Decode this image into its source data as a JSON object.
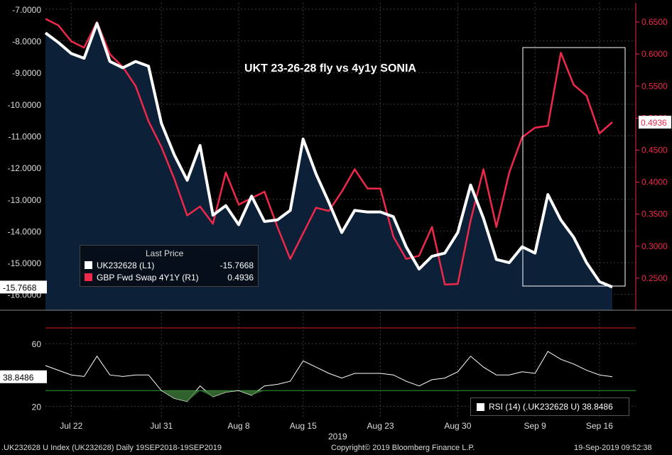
{
  "chart_data": [
    {
      "type": "line",
      "title": "UKT 23-26-28 fly vs 4y1y SONIA",
      "legend_header": "Last Price",
      "legend_placement": "bottom-left",
      "x_ticks": [
        "Jul 22",
        "Jul 31",
        "Aug 8",
        "Aug 15",
        "Aug 23",
        "Aug 30",
        "Sep 9",
        "Sep 16"
      ],
      "x_year": "2019",
      "left_axis": {
        "ticks": [
          "-7.0000",
          "-8.0000",
          "-9.0000",
          "-10.0000",
          "-11.0000",
          "-12.0000",
          "-13.0000",
          "-14.0000",
          "-15.0000",
          "-16.0000"
        ],
        "ylim": [
          -16.5,
          -6.8
        ]
      },
      "right_axis": {
        "ticks": [
          "0.6500",
          "0.6000",
          "0.5500",
          "0.5000",
          "0.4500",
          "0.4000",
          "0.3500",
          "0.3000",
          "0.2500"
        ],
        "ylim": [
          0.2,
          0.68
        ]
      },
      "series": [
        {
          "name": "UK232628  (L1)",
          "axis": "left",
          "color": "#ffffff",
          "last_label": "-15.7668",
          "values": [
            -7.75,
            -8.05,
            -8.4,
            -8.55,
            -7.45,
            -8.65,
            -8.85,
            -8.65,
            -8.8,
            -10.6,
            -11.6,
            -12.4,
            -11.3,
            -13.5,
            -13.2,
            -13.8,
            -12.9,
            -13.7,
            -13.65,
            -13.35,
            -11.1,
            -12.2,
            -13.1,
            -14.05,
            -13.35,
            -13.4,
            -13.4,
            -13.55,
            -14.5,
            -15.2,
            -14.8,
            -14.7,
            -14.05,
            -12.55,
            -13.6,
            -14.9,
            -15.0,
            -14.5,
            -14.7,
            -12.85,
            -13.65,
            -14.2,
            -15.0,
            -15.6,
            -15.77
          ],
          "dates_note": ""
        },
        {
          "name": "GBP Fwd Swap 4Y1Y  (R1)",
          "axis": "right",
          "color": "#f0284a",
          "last_label": "0.4936",
          "values": [
            0.655,
            0.645,
            0.62,
            0.61,
            0.65,
            0.6,
            0.58,
            0.55,
            0.495,
            0.455,
            0.405,
            0.348,
            0.362,
            0.335,
            0.415,
            0.365,
            0.375,
            0.385,
            0.33,
            0.28,
            0.32,
            0.36,
            0.355,
            0.385,
            0.42,
            0.39,
            0.39,
            0.315,
            0.28,
            0.285,
            0.33,
            0.24,
            0.241,
            0.34,
            0.42,
            0.33,
            0.415,
            0.47,
            0.485,
            0.488,
            0.602,
            0.552,
            0.535,
            0.476,
            0.4936
          ]
        }
      ]
    },
    {
      "type": "line",
      "title": "",
      "legend_label": "RSI (14)  (.UK232628 U)  38.8486",
      "left_axis": {
        "ticks": [
          "60",
          "20"
        ],
        "ylim": [
          12,
          80
        ]
      },
      "levels": [
        {
          "value": 70,
          "color": "#d02020"
        },
        {
          "value": 30,
          "color": "#2e9e3a"
        }
      ],
      "last_label": "38.8486",
      "series": [
        {
          "name": "RSI (14)",
          "color": "#ffffff",
          "values": [
            46,
            43,
            40,
            39,
            52,
            40,
            39,
            40,
            40,
            30,
            25,
            23,
            33,
            26,
            29,
            30,
            27,
            33,
            34,
            36,
            49,
            45,
            41,
            38,
            41,
            41,
            41,
            40,
            36,
            33,
            37,
            38,
            42,
            52,
            45,
            40,
            40,
            42,
            41,
            55,
            50,
            47,
            43,
            40,
            38.85
          ]
        }
      ]
    }
  ],
  "legend": {
    "series1_value": "-15.7668",
    "series2_value": "0.4936"
  },
  "footer": {
    "left": ".UK232628 U Index (UK232628)  Daily 19SEP2018-19SEP2019",
    "center": "Copyright© 2019 Bloomberg Finance L.P.",
    "right": "19-Sep-2019 09:52:38"
  },
  "colors": {
    "background": "#000000",
    "area_fill": "#0c2038",
    "white_line": "#ffffff",
    "red_line": "#f0284a",
    "grid": "#3a3a3a"
  }
}
